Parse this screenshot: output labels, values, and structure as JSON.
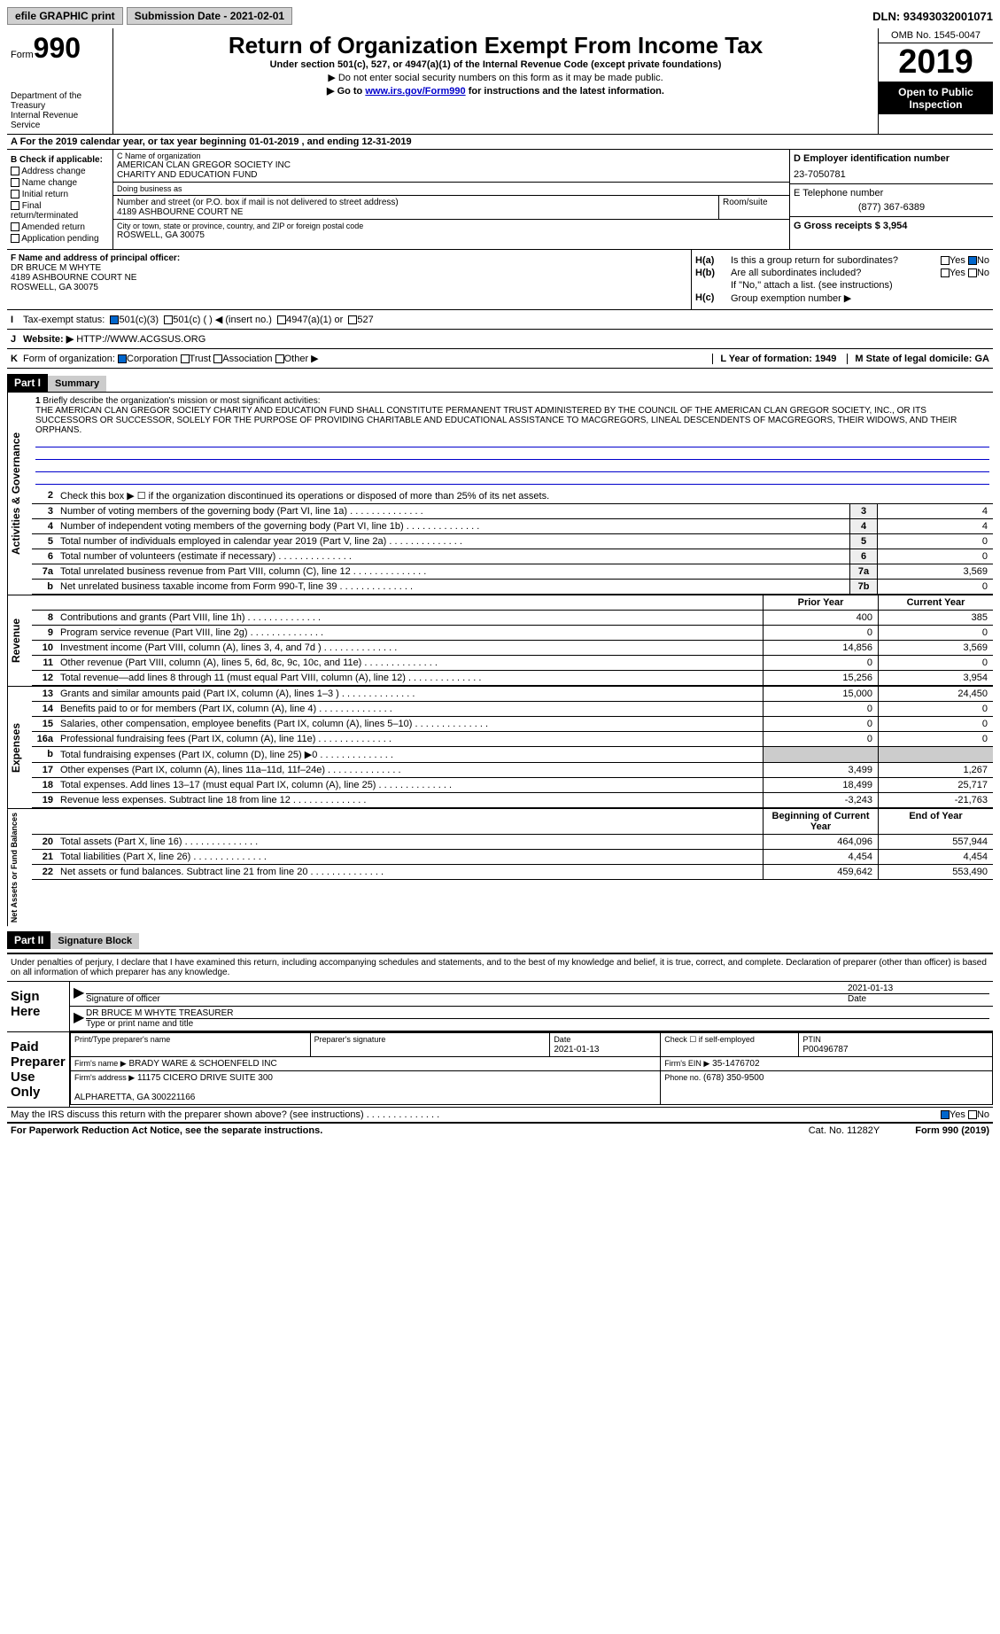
{
  "topbar": {
    "efile": "efile GRAPHIC print",
    "submission": "Submission Date - 2021-02-01",
    "dln": "DLN: 93493032001071"
  },
  "header": {
    "form_label": "Form",
    "form_num": "990",
    "dept": "Department of the Treasury\nInternal Revenue Service",
    "title": "Return of Organization Exempt From Income Tax",
    "sub": "Under section 501(c), 527, or 4947(a)(1) of the Internal Revenue Code (except private foundations)",
    "note1": "▶ Do not enter social security numbers on this form as it may be made public.",
    "note2_pre": "▶ Go to ",
    "note2_link": "www.irs.gov/Form990",
    "note2_post": " for instructions and the latest information.",
    "omb": "OMB No. 1545-0047",
    "year": "2019",
    "open": "Open to Public Inspection"
  },
  "rowA": "A For the 2019 calendar year, or tax year beginning 01-01-2019   , and ending 12-31-2019",
  "boxB": {
    "title": "B Check if applicable:",
    "items": [
      "Address change",
      "Name change",
      "Initial return",
      "Final return/terminated",
      "Amended return",
      "Application pending"
    ]
  },
  "boxC": {
    "name_lbl": "C Name of organization",
    "name": "AMERICAN CLAN GREGOR SOCIETY INC\nCHARITY AND EDUCATION FUND",
    "dba_lbl": "Doing business as",
    "dba": "",
    "street_lbl": "Number and street (or P.O. box if mail is not delivered to street address)",
    "street": "4189 ASHBOURNE COURT NE",
    "room_lbl": "Room/suite",
    "city_lbl": "City or town, state or province, country, and ZIP or foreign postal code",
    "city": "ROSWELL, GA  30075"
  },
  "boxD": {
    "ein_lbl": "D Employer identification number",
    "ein": "23-7050781",
    "tel_lbl": "E Telephone number",
    "tel": "(877) 367-6389",
    "gross_lbl": "G Gross receipts $ 3,954"
  },
  "boxF": {
    "lbl": "F  Name and address of principal officer:",
    "name": "DR BRUCE M WHYTE",
    "addr": "4189 ASHBOURNE COURT NE\nROSWELL, GA  30075"
  },
  "boxH": {
    "a": "Is this a group return for subordinates?",
    "b": "Are all subordinates included?",
    "b2": "If \"No,\" attach a list. (see instructions)",
    "c": "Group exemption number ▶"
  },
  "rowI": "Tax-exempt status:",
  "rowI_opts": [
    "501(c)(3)",
    "501(c) (   ) ◀ (insert no.)",
    "4947(a)(1) or",
    "527"
  ],
  "rowJ": {
    "lbl": "Website: ▶",
    "val": "HTTP://WWW.ACGSUS.ORG"
  },
  "rowK": {
    "lbl": "Form of organization:",
    "opts": [
      "Corporation",
      "Trust",
      "Association",
      "Other ▶"
    ],
    "year": "L Year of formation: 1949",
    "state": "M State of legal domicile: GA"
  },
  "part1": {
    "hdr": "Part I",
    "title": "Summary",
    "line1_lbl": "Briefly describe the organization's mission or most significant activities:",
    "mission": "THE AMERICAN CLAN GREGOR SOCIETY CHARITY AND EDUCATION FUND SHALL CONSTITUTE PERMANENT TRUST ADMINISTERED BY THE COUNCIL OF THE AMERICAN CLAN GREGOR SOCIETY, INC., OR ITS SUCCESSORS OR SUCCESSOR, SOLELY FOR THE PURPOSE OF PROVIDING CHARITABLE AND EDUCATIONAL ASSISTANCE TO MACGREGORS, LINEAL DESCENDENTS OF MACGREGORS, THEIR WIDOWS, AND THEIR ORPHANS.",
    "line2": "Check this box ▶ ☐  if the organization discontinued its operations or disposed of more than 25% of its net assets.",
    "gov_lines": [
      {
        "n": "3",
        "t": "Number of voting members of the governing body (Part VI, line 1a)",
        "c": "3",
        "v": "4"
      },
      {
        "n": "4",
        "t": "Number of independent voting members of the governing body (Part VI, line 1b)",
        "c": "4",
        "v": "4"
      },
      {
        "n": "5",
        "t": "Total number of individuals employed in calendar year 2019 (Part V, line 2a)",
        "c": "5",
        "v": "0"
      },
      {
        "n": "6",
        "t": "Total number of volunteers (estimate if necessary)",
        "c": "6",
        "v": "0"
      },
      {
        "n": "7a",
        "t": "Total unrelated business revenue from Part VIII, column (C), line 12",
        "c": "7a",
        "v": "3,569"
      },
      {
        "n": "b",
        "t": "Net unrelated business taxable income from Form 990-T, line 39",
        "c": "7b",
        "v": "0"
      }
    ],
    "col_hdrs": {
      "prior": "Prior Year",
      "current": "Current Year"
    },
    "rev_lines": [
      {
        "n": "8",
        "t": "Contributions and grants (Part VIII, line 1h)",
        "p": "400",
        "c": "385"
      },
      {
        "n": "9",
        "t": "Program service revenue (Part VIII, line 2g)",
        "p": "0",
        "c": "0"
      },
      {
        "n": "10",
        "t": "Investment income (Part VIII, column (A), lines 3, 4, and 7d )",
        "p": "14,856",
        "c": "3,569"
      },
      {
        "n": "11",
        "t": "Other revenue (Part VIII, column (A), lines 5, 6d, 8c, 9c, 10c, and 11e)",
        "p": "0",
        "c": "0"
      },
      {
        "n": "12",
        "t": "Total revenue—add lines 8 through 11 (must equal Part VIII, column (A), line 12)",
        "p": "15,256",
        "c": "3,954"
      }
    ],
    "exp_lines": [
      {
        "n": "13",
        "t": "Grants and similar amounts paid (Part IX, column (A), lines 1–3 )",
        "p": "15,000",
        "c": "24,450"
      },
      {
        "n": "14",
        "t": "Benefits paid to or for members (Part IX, column (A), line 4)",
        "p": "0",
        "c": "0"
      },
      {
        "n": "15",
        "t": "Salaries, other compensation, employee benefits (Part IX, column (A), lines 5–10)",
        "p": "0",
        "c": "0"
      },
      {
        "n": "16a",
        "t": "Professional fundraising fees (Part IX, column (A), line 11e)",
        "p": "0",
        "c": "0"
      },
      {
        "n": "b",
        "t": "Total fundraising expenses (Part IX, column (D), line 25) ▶0",
        "p": "",
        "c": ""
      },
      {
        "n": "17",
        "t": "Other expenses (Part IX, column (A), lines 11a–11d, 11f–24e)",
        "p": "3,499",
        "c": "1,267"
      },
      {
        "n": "18",
        "t": "Total expenses. Add lines 13–17 (must equal Part IX, column (A), line 25)",
        "p": "18,499",
        "c": "25,717"
      },
      {
        "n": "19",
        "t": "Revenue less expenses. Subtract line 18 from line 12",
        "p": "-3,243",
        "c": "-21,763"
      }
    ],
    "na_hdrs": {
      "beg": "Beginning of Current Year",
      "end": "End of Year"
    },
    "na_lines": [
      {
        "n": "20",
        "t": "Total assets (Part X, line 16)",
        "p": "464,096",
        "c": "557,944"
      },
      {
        "n": "21",
        "t": "Total liabilities (Part X, line 26)",
        "p": "4,454",
        "c": "4,454"
      },
      {
        "n": "22",
        "t": "Net assets or fund balances. Subtract line 21 from line 20",
        "p": "459,642",
        "c": "553,490"
      }
    ]
  },
  "part2": {
    "hdr": "Part II",
    "title": "Signature Block",
    "decl": "Under penalties of perjury, I declare that I have examined this return, including accompanying schedules and statements, and to the best of my knowledge and belief, it is true, correct, and complete. Declaration of preparer (other than officer) is based on all information of which preparer has any knowledge.",
    "sign_here": "Sign Here",
    "sig_officer": "Signature of officer",
    "sig_date": "2021-01-13",
    "date_lbl": "Date",
    "officer_name": "DR BRUCE M WHYTE TREASURER",
    "name_lbl": "Type or print name and title",
    "paid": "Paid Preparer Use Only",
    "prep": {
      "name_lbl": "Print/Type preparer's name",
      "sig_lbl": "Preparer's signature",
      "date_lbl": "Date",
      "date": "2021-01-13",
      "self_lbl": "Check ☐ if self-employed",
      "ptin_lbl": "PTIN",
      "ptin": "P00496787",
      "firm_name_lbl": "Firm's name    ▶",
      "firm_name": "BRADY WARE & SCHOENFELD INC",
      "firm_ein_lbl": "Firm's EIN ▶",
      "firm_ein": "35-1476702",
      "firm_addr_lbl": "Firm's address ▶",
      "firm_addr": "11175 CICERO DRIVE SUITE 300\n\nALPHARETTA, GA  300221166",
      "phone_lbl": "Phone no.",
      "phone": "(678) 350-9500"
    },
    "discuss": "May the IRS discuss this return with the preparer shown above? (see instructions)"
  },
  "footer": {
    "left": "For Paperwork Reduction Act Notice, see the separate instructions.",
    "mid": "Cat. No. 11282Y",
    "right": "Form 990 (2019)"
  }
}
